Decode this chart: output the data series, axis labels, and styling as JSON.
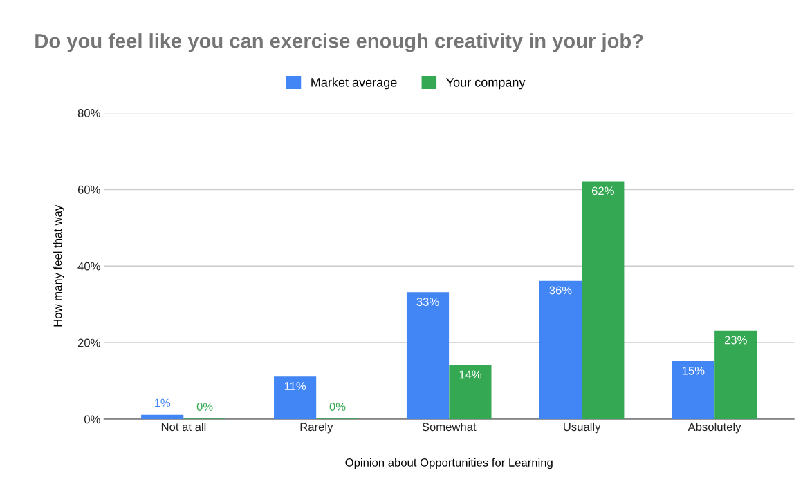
{
  "chart_data": {
    "type": "bar",
    "title": "Do you feel like you can exercise enough creativity in your job?",
    "xlabel": "Opinion about Opportunities for Learning",
    "ylabel": "How many feel that way",
    "categories": [
      "Not at all",
      "Rarely",
      "Somewhat",
      "Usually",
      "Absolutely"
    ],
    "series": [
      {
        "name": "Market average",
        "color": "#4285f4",
        "values": [
          1,
          11,
          33,
          36,
          15
        ],
        "value_labels": [
          "1%",
          "11%",
          "33%",
          "36%",
          "15%"
        ]
      },
      {
        "name": "Your company",
        "color": "#34a853",
        "values": [
          0,
          0,
          14,
          62,
          23
        ],
        "value_labels": [
          "0%",
          "0%",
          "14%",
          "62%",
          "23%"
        ]
      }
    ],
    "ylim": [
      0,
      80
    ],
    "yticks": [
      {
        "value": 0,
        "label": "0%"
      },
      {
        "value": 20,
        "label": "20%"
      },
      {
        "value": 40,
        "label": "40%"
      },
      {
        "value": 60,
        "label": "60%"
      },
      {
        "value": 80,
        "label": "80%"
      }
    ],
    "grid": "y",
    "legend": "top"
  }
}
